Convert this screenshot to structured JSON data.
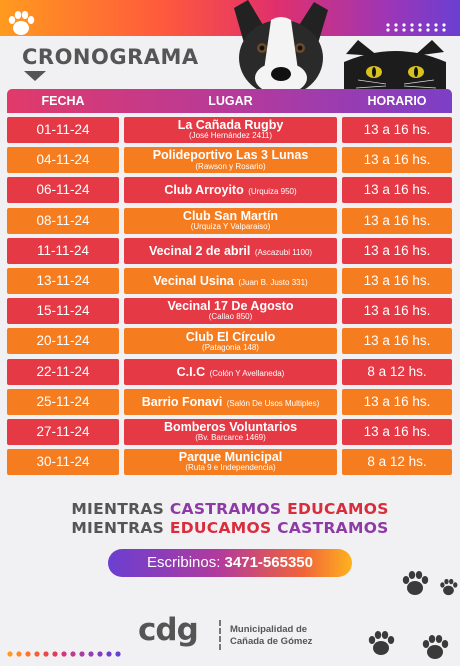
{
  "title": "CRONOGRAMA",
  "table": {
    "headers": {
      "date": "FECHA",
      "place": "LUGAR",
      "time": "HORARIO"
    },
    "rows": [
      {
        "date": "01-11-24",
        "name": "La Cañada Rugby",
        "address": "(José Hernández 2411)",
        "time": "13 a 16 hs.",
        "layout": "stack"
      },
      {
        "date": "04-11-24",
        "name": "Polideportivo Las 3 Lunas",
        "address": "(Rawson y Rosario)",
        "time": "13 a 16 hs.",
        "layout": "stack"
      },
      {
        "date": "06-11-24",
        "name": "Club Arroyito",
        "address": "(Urquiza 950)",
        "time": "13 a 16 hs.",
        "layout": "inline"
      },
      {
        "date": "08-11-24",
        "name": "Club San Martín",
        "address": "(Urquiza Y Valparaiso)",
        "time": "13 a 16 hs.",
        "layout": "stack"
      },
      {
        "date": "11-11-24",
        "name": "Vecinal 2 de abril",
        "address": "(Ascazubi 1100)",
        "time": "13 a 16 hs.",
        "layout": "inline"
      },
      {
        "date": "13-11-24",
        "name": "Vecinal Usina",
        "address": "(Juan B. Justo 331)",
        "time": "13 a 16 hs.",
        "layout": "inline"
      },
      {
        "date": "15-11-24",
        "name": "Vecinal 17 De Agosto",
        "address": "(Callao 850)",
        "time": "13 a 16 hs.",
        "layout": "stack"
      },
      {
        "date": "20-11-24",
        "name": "Club El Círculo",
        "address": "(Patagonia 148)",
        "time": "13 a 16 hs.",
        "layout": "stack"
      },
      {
        "date": "22-11-24",
        "name": "C.I.C",
        "address": "(Colón Y Avellaneda)",
        "time": "8 a 12 hs.",
        "layout": "inline"
      },
      {
        "date": "25-11-24",
        "name": "Barrio Fonavi",
        "address": "(Salón De Usos Multiples)",
        "time": "13 a 16 hs.",
        "layout": "inline"
      },
      {
        "date": "27-11-24",
        "name": "Bomberos Voluntarios",
        "address": "(Bv. Barcarce 1469)",
        "time": "13 a 16 hs.",
        "layout": "stack"
      },
      {
        "date": "30-11-24",
        "name": "Parque Municipal",
        "address": "(Ruta 9 e Independencia)",
        "time": "8 a 12 hs.",
        "layout": "stack"
      }
    ]
  },
  "slogan": {
    "line1": [
      "MIENTRAS",
      "CASTRAMOS",
      "EDUCAMOS"
    ],
    "line2": [
      "MIENTRAS",
      "EDUCAMOS",
      "CASTRAMOS"
    ]
  },
  "contact": {
    "label": "Escribinos:",
    "phone": "3471-565350"
  },
  "footer": {
    "logo": "cdg",
    "municipality_line1": "Municipalidad de",
    "municipality_line2": "Cañada de Gómez"
  },
  "colors": {
    "row_red": "#e53945",
    "row_orange": "#f57d1f",
    "text_gray": "#555555",
    "accent_purple": "#8e3aa6",
    "accent_red": "#d92c3c"
  },
  "icons": [
    "paw-icon",
    "dog-illustration",
    "cat-illustration",
    "dots-decoration"
  ]
}
